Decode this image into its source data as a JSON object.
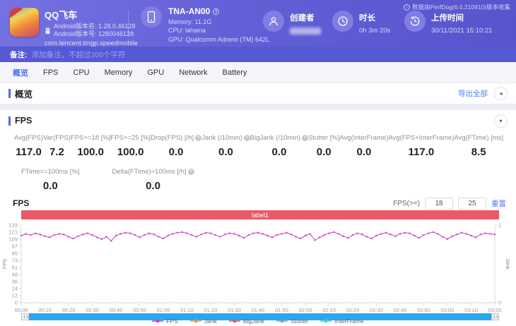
{
  "header": {
    "app": {
      "name": "QQ飞车",
      "version_name": "Android版本名: 1.28.0.46128",
      "version_code": "Android版本号: 1280046128",
      "package": "com.tencent.tmgp.speedmobile"
    },
    "device": {
      "model": "TNA-AN00",
      "memory": "Memory: 11.1G",
      "cpu": "CPU: lahaina",
      "gpu": "GPU: Qualcomm Adreno (TM) 642L"
    },
    "creator": {
      "label": "创建者"
    },
    "duration": {
      "label": "时长",
      "value": "0h 3m 20s"
    },
    "upload": {
      "label": "上传时间",
      "value": "30/11/2021 15:10:21"
    },
    "collected_by": "数据由PerfDog(6.0.210910)版本收集"
  },
  "note_bar": {
    "label": "备注:",
    "placeholder": "添加备注，不超过200个字符"
  },
  "tabs": [
    {
      "label": "概览",
      "active": true
    },
    {
      "label": "FPS",
      "active": false
    },
    {
      "label": "CPU",
      "active": false
    },
    {
      "label": "Memory",
      "active": false
    },
    {
      "label": "GPU",
      "active": false
    },
    {
      "label": "Network",
      "active": false
    },
    {
      "label": "Battery",
      "active": false
    }
  ],
  "overview_section": {
    "title": "概览",
    "export_label": "导出全部"
  },
  "fps_section": {
    "title": "FPS",
    "stats_row1": [
      {
        "label": "Avg(FPS)",
        "value": "117.0",
        "info": false
      },
      {
        "label": "Var(FPS)",
        "value": "7.2",
        "info": false
      },
      {
        "label": "FPS>=18 [%]",
        "value": "100.0",
        "info": false
      },
      {
        "label": "FPS>=25 [%]",
        "value": "100.0",
        "info": false
      },
      {
        "label": "Drop(FPS) [/h]",
        "value": "0.0",
        "info": true
      },
      {
        "label": "Jank (/10min)",
        "value": "0.0",
        "info": true
      },
      {
        "label": "BigJank (/10min)",
        "value": "0.0",
        "info": true
      },
      {
        "label": "Stutter [%]",
        "value": "0.0",
        "info": false
      },
      {
        "label": "Avg(InterFrame)",
        "value": "0.0",
        "info": false
      },
      {
        "label": "Avg(FPS+InterFrame)",
        "value": "117.0",
        "info": false
      },
      {
        "label": "Avg(FTime) [ms]",
        "value": "8.5",
        "info": false
      }
    ],
    "stats_row2": [
      {
        "label": "FTime>=100ms [%]",
        "value": "0.0",
        "info": false
      },
      {
        "label": "Delta(FTime)>100ms [/h]",
        "value": "0.0",
        "info": true
      }
    ],
    "toolbar": {
      "chart_title": "FPS",
      "threshold_label": "FPS(>=)",
      "threshold1": "18",
      "threshold2": "25",
      "reset_label": "重置"
    }
  },
  "icons": {
    "overview_collapse": "◂",
    "fps_collapse": "▾",
    "info_glyph": "?",
    "collected_info_glyph": "i",
    "device_info_glyph": "i"
  },
  "chart_data": {
    "type": "line",
    "title": "FPS",
    "ylabel": "FPS",
    "y2label": "Jank",
    "xlim": [
      0,
      200
    ],
    "ylim": [
      0,
      133
    ],
    "y2lim": [
      0,
      1
    ],
    "y_ticks": [
      0,
      12,
      24,
      36,
      48,
      61,
      73,
      85,
      97,
      109,
      121,
      133
    ],
    "y2_ticks": [
      0,
      1
    ],
    "x_ticks": [
      "00:00",
      "00:10",
      "00:20",
      "00:30",
      "00:40",
      "00:50",
      "01:00",
      "01:10",
      "01:20",
      "01:30",
      "01:40",
      "01:50",
      "02:00",
      "02:10",
      "02:20",
      "02:30",
      "02:40",
      "02:50",
      "03:00",
      "03:10",
      "03:20"
    ],
    "x_step_seconds": 2,
    "grid": false,
    "legend_position": "bottom",
    "annotation": {
      "label": "label1",
      "color": "#e85a68"
    },
    "series": [
      {
        "name": "FPS",
        "color": "#c840c8",
        "values": [
          115,
          118,
          116,
          119,
          117,
          114,
          112,
          116,
          118,
          117,
          113,
          110,
          114,
          117,
          119,
          116,
          112,
          109,
          113,
          106,
          115,
          118,
          120,
          119,
          116,
          112,
          116,
          119,
          117,
          113,
          110,
          115,
          118,
          120,
          121,
          119,
          116,
          113,
          117,
          120,
          119,
          116,
          113,
          117,
          119,
          118,
          115,
          111,
          116,
          119,
          120,
          118,
          115,
          112,
          116,
          118,
          120,
          117,
          113,
          110,
          115,
          118,
          107,
          112,
          116,
          119,
          121,
          118,
          114,
          111,
          116,
          119,
          117,
          113,
          110,
          115,
          118,
          120,
          117,
          114,
          118,
          120,
          119,
          115,
          111,
          116,
          119,
          121,
          118,
          113,
          109,
          114,
          117,
          120,
          118,
          115,
          112,
          117,
          119,
          118,
          117
        ]
      },
      {
        "name": "Jank",
        "color": "#f2953f",
        "values": [],
        "constant": 0
      },
      {
        "name": "BigJank",
        "color": "#e7515f",
        "values": [],
        "constant": 0
      },
      {
        "name": "Stutter",
        "color": "#7ba0c8",
        "values": [],
        "constant": 0
      },
      {
        "name": "InterFrame",
        "color": "#49d3c9",
        "values": [],
        "constant": 0
      }
    ]
  }
}
